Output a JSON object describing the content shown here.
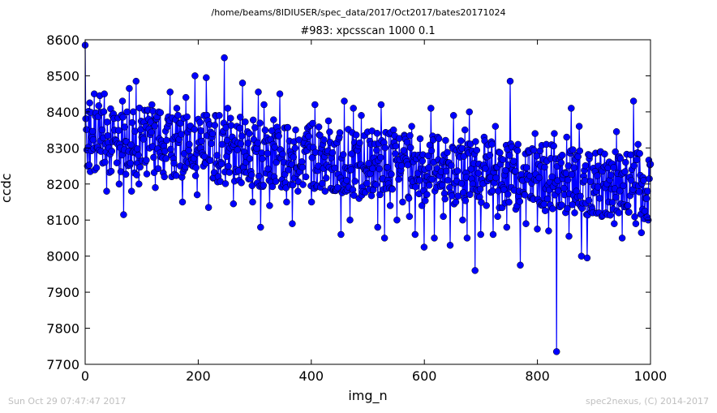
{
  "suptitle": "/home/beams/8IDIUSER/spec_data/2017/Oct2017/bates20171024",
  "footer": {
    "left": "Sun Oct 29 07:47:47 2017",
    "right": "spec2nexus, (C) 2014-2017"
  },
  "colors": {
    "series": "#0000ff",
    "axes": "#000000",
    "footer": "#bfbfbf"
  },
  "chart_data": {
    "type": "line",
    "title": "#983: xpcsscan 1000 0.1",
    "xlabel": "img_n",
    "ylabel": "ccdc",
    "xlim": [
      0,
      1000
    ],
    "ylim": [
      7700,
      8600
    ],
    "xticks": [
      0,
      200,
      400,
      600,
      800,
      1000
    ],
    "yticks": [
      7700,
      7800,
      7900,
      8000,
      8100,
      8200,
      8300,
      8400,
      8500,
      8600
    ],
    "marker": "circle",
    "grid": false,
    "n_points": 1000,
    "series": [
      {
        "points": [
          [
            0,
            8585
          ],
          [
            4,
            8250
          ],
          [
            8,
            8425
          ],
          [
            12,
            8330
          ],
          [
            16,
            8450
          ],
          [
            20,
            8245
          ],
          [
            26,
            8445
          ],
          [
            30,
            8350
          ],
          [
            34,
            8450
          ],
          [
            38,
            8180
          ],
          [
            42,
            8300
          ],
          [
            48,
            8390
          ],
          [
            55,
            8320
          ],
          [
            60,
            8200
          ],
          [
            66,
            8430
          ],
          [
            68,
            8115
          ],
          [
            74,
            8400
          ],
          [
            78,
            8465
          ],
          [
            82,
            8180
          ],
          [
            86,
            8290
          ],
          [
            90,
            8485
          ],
          [
            95,
            8200
          ],
          [
            100,
            8330
          ],
          [
            106,
            8260
          ],
          [
            112,
            8380
          ],
          [
            118,
            8420
          ],
          [
            124,
            8190
          ],
          [
            130,
            8400
          ],
          [
            136,
            8310
          ],
          [
            140,
            8220
          ],
          [
            146,
            8380
          ],
          [
            150,
            8455
          ],
          [
            156,
            8270
          ],
          [
            162,
            8410
          ],
          [
            168,
            8250
          ],
          [
            172,
            8150
          ],
          [
            178,
            8440
          ],
          [
            184,
            8310
          ],
          [
            190,
            8260
          ],
          [
            194,
            8500
          ],
          [
            198,
            8170
          ],
          [
            204,
            8300
          ],
          [
            210,
            8390
          ],
          [
            214,
            8495
          ],
          [
            218,
            8135
          ],
          [
            224,
            8330
          ],
          [
            230,
            8390
          ],
          [
            236,
            8250
          ],
          [
            242,
            8310
          ],
          [
            246,
            8550
          ],
          [
            252,
            8410
          ],
          [
            256,
            8300
          ],
          [
            262,
            8145
          ],
          [
            268,
            8360
          ],
          [
            272,
            8210
          ],
          [
            278,
            8480
          ],
          [
            284,
            8260
          ],
          [
            290,
            8340
          ],
          [
            296,
            8150
          ],
          [
            302,
            8290
          ],
          [
            306,
            8455
          ],
          [
            310,
            8080
          ],
          [
            316,
            8420
          ],
          [
            320,
            8230
          ],
          [
            326,
            8140
          ],
          [
            332,
            8310
          ],
          [
            338,
            8260
          ],
          [
            344,
            8450
          ],
          [
            350,
            8200
          ],
          [
            356,
            8150
          ],
          [
            362,
            8290
          ],
          [
            366,
            8090
          ],
          [
            372,
            8350
          ],
          [
            376,
            8180
          ],
          [
            380,
            8250
          ],
          [
            386,
            8310
          ],
          [
            390,
            8220
          ],
          [
            396,
            8360
          ],
          [
            400,
            8150
          ],
          [
            406,
            8420
          ],
          [
            412,
            8250
          ],
          [
            418,
            8300
          ],
          [
            424,
            8180
          ],
          [
            430,
            8375
          ],
          [
            436,
            8240
          ],
          [
            440,
            8310
          ],
          [
            446,
            8190
          ],
          [
            452,
            8060
          ],
          [
            458,
            8430
          ],
          [
            462,
            8210
          ],
          [
            468,
            8100
          ],
          [
            474,
            8410
          ],
          [
            478,
            8300
          ],
          [
            484,
            8160
          ],
          [
            488,
            8390
          ],
          [
            494,
            8240
          ],
          [
            500,
            8125
          ],
          [
            506,
            8310
          ],
          [
            512,
            8200
          ],
          [
            518,
            8080
          ],
          [
            524,
            8420
          ],
          [
            530,
            8050
          ],
          [
            536,
            8210
          ],
          [
            540,
            8140
          ],
          [
            546,
            8350
          ],
          [
            552,
            8100
          ],
          [
            558,
            8230
          ],
          [
            562,
            8150
          ],
          [
            568,
            8270
          ],
          [
            574,
            8110
          ],
          [
            578,
            8360
          ],
          [
            584,
            8060
          ],
          [
            590,
            8280
          ],
          [
            596,
            8140
          ],
          [
            600,
            8025
          ],
          [
            606,
            8220
          ],
          [
            612,
            8410
          ],
          [
            618,
            8050
          ],
          [
            624,
            8330
          ],
          [
            628,
            8200
          ],
          [
            634,
            8110
          ],
          [
            640,
            8260
          ],
          [
            646,
            8030
          ],
          [
            652,
            8390
          ],
          [
            656,
            8150
          ],
          [
            662,
            8300
          ],
          [
            668,
            8100
          ],
          [
            672,
            8350
          ],
          [
            676,
            8050
          ],
          [
            680,
            8400
          ],
          [
            686,
            8200
          ],
          [
            690,
            7960
          ],
          [
            696,
            8230
          ],
          [
            700,
            8060
          ],
          [
            706,
            8330
          ],
          [
            710,
            8140
          ],
          [
            716,
            8280
          ],
          [
            722,
            8060
          ],
          [
            726,
            8360
          ],
          [
            730,
            8110
          ],
          [
            736,
            8270
          ],
          [
            740,
            8190
          ],
          [
            746,
            8080
          ],
          [
            752,
            8485
          ],
          [
            756,
            8240
          ],
          [
            762,
            8130
          ],
          [
            766,
            8310
          ],
          [
            770,
            7975
          ],
          [
            774,
            8210
          ],
          [
            780,
            8090
          ],
          [
            786,
            8290
          ],
          [
            792,
            8160
          ],
          [
            796,
            8340
          ],
          [
            800,
            8075
          ],
          [
            806,
            8250
          ],
          [
            810,
            8140
          ],
          [
            816,
            8310
          ],
          [
            820,
            8070
          ],
          [
            826,
            8220
          ],
          [
            830,
            8340
          ],
          [
            834,
            7735
          ],
          [
            838,
            8140
          ],
          [
            844,
            8280
          ],
          [
            848,
            8170
          ],
          [
            852,
            8330
          ],
          [
            856,
            8055
          ],
          [
            860,
            8410
          ],
          [
            866,
            8120
          ],
          [
            870,
            8280
          ],
          [
            874,
            8360
          ],
          [
            878,
            8000
          ],
          [
            884,
            8210
          ],
          [
            888,
            7995
          ],
          [
            892,
            8270
          ],
          [
            898,
            8120
          ],
          [
            904,
            8180
          ],
          [
            908,
            8250
          ],
          [
            914,
            8110
          ],
          [
            920,
            8190
          ],
          [
            926,
            8150
          ],
          [
            930,
            8225
          ],
          [
            936,
            8090
          ],
          [
            940,
            8345
          ],
          [
            944,
            8120
          ],
          [
            950,
            8050
          ],
          [
            956,
            8260
          ],
          [
            960,
            8140
          ],
          [
            966,
            8210
          ],
          [
            970,
            8430
          ],
          [
            974,
            8090
          ],
          [
            978,
            8310
          ],
          [
            984,
            8065
          ],
          [
            988,
            8210
          ],
          [
            992,
            8180
          ],
          [
            996,
            8100
          ],
          [
            1000,
            8255
          ]
        ]
      }
    ]
  }
}
